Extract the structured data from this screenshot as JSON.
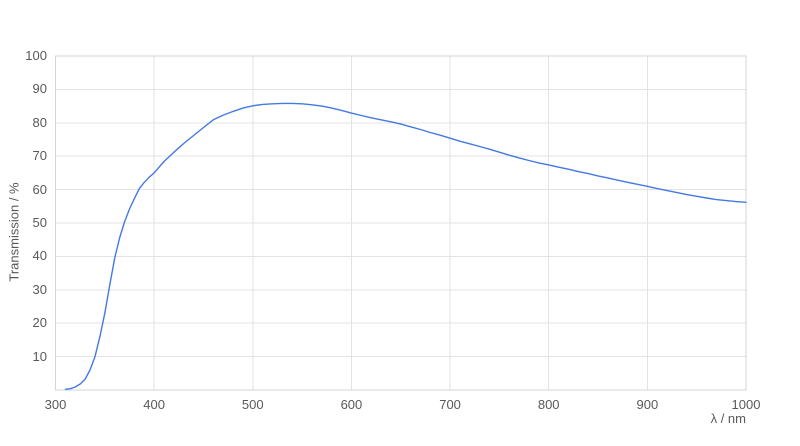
{
  "chart_data": {
    "type": "line",
    "title": "",
    "xlabel": "λ / nm",
    "ylabel": "Transmission / %",
    "xlim": [
      300,
      1000
    ],
    "ylim": [
      0,
      100
    ],
    "xticks": [
      300,
      400,
      500,
      600,
      700,
      800,
      900,
      1000
    ],
    "yticks": [
      10,
      20,
      30,
      40,
      50,
      60,
      70,
      80,
      90,
      100
    ],
    "grid": true,
    "legend": false,
    "colors": {
      "line": "#4379e2",
      "grid": "#e3e3e3",
      "border": "#d4d4d4",
      "tick_text": "#58595b",
      "axis_title_text": "#58595b",
      "background": "#ffffff"
    },
    "x": [
      310,
      315,
      320,
      325,
      330,
      335,
      340,
      345,
      350,
      355,
      360,
      365,
      370,
      375,
      380,
      385,
      390,
      395,
      400,
      410,
      420,
      430,
      440,
      450,
      460,
      470,
      480,
      490,
      500,
      510,
      520,
      530,
      540,
      550,
      560,
      570,
      580,
      590,
      600,
      610,
      620,
      630,
      640,
      650,
      660,
      670,
      680,
      690,
      700,
      710,
      720,
      730,
      740,
      750,
      760,
      770,
      780,
      790,
      800,
      810,
      820,
      830,
      840,
      850,
      860,
      870,
      880,
      890,
      900,
      910,
      920,
      930,
      940,
      950,
      960,
      970,
      980,
      990,
      1000
    ],
    "series": [
      {
        "values": [
          0.2,
          0.4,
          0.9,
          1.8,
          3.2,
          6,
          10,
          16,
          23,
          31.5,
          39.5,
          45.5,
          50.3,
          54.2,
          57.3,
          60.3,
          62.2,
          63.7,
          65,
          68.4,
          71.2,
          73.8,
          76.2,
          78.6,
          80.9,
          82.3,
          83.4,
          84.4,
          85.1,
          85.5,
          85.7,
          85.8,
          85.8,
          85.7,
          85.4,
          85,
          84.4,
          83.7,
          82.9,
          82.2,
          81.5,
          80.9,
          80.3,
          79.6,
          78.8,
          78,
          77.1,
          76.3,
          75.4,
          74.5,
          73.7,
          72.9,
          72.1,
          71.2,
          70.3,
          69.5,
          68.7,
          68,
          67.4,
          66.7,
          66.1,
          65.4,
          64.8,
          64.1,
          63.5,
          62.8,
          62.2,
          61.6,
          61,
          60.3,
          59.7,
          59.1,
          58.5,
          58,
          57.5,
          57,
          56.7,
          56.4,
          56.2
        ]
      }
    ]
  }
}
